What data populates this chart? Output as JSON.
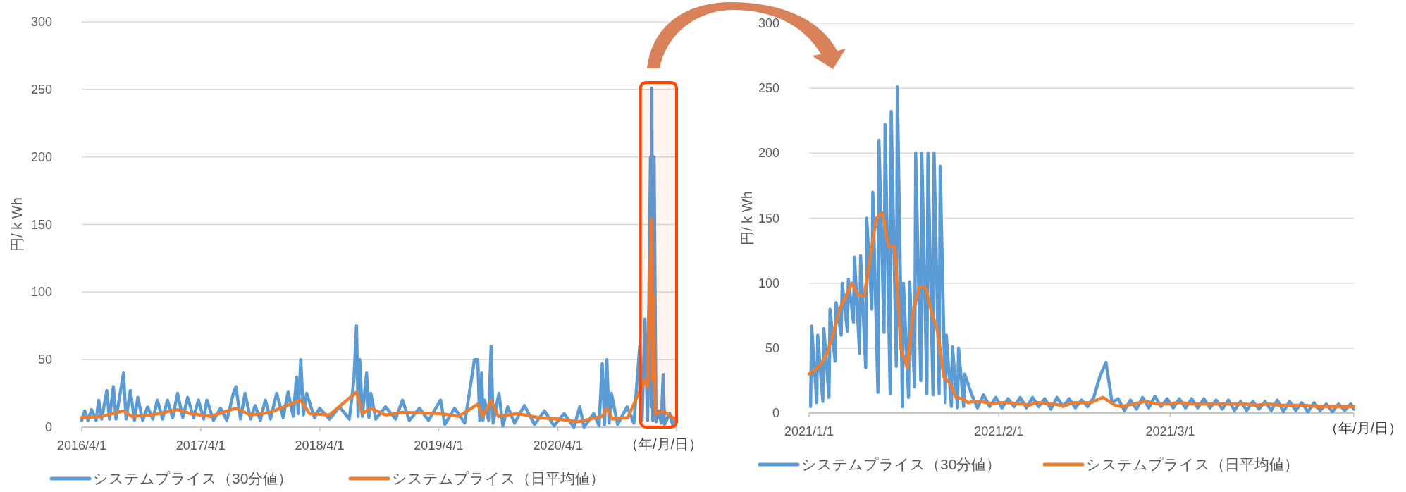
{
  "chart_data": [
    {
      "type": "line",
      "ylabel": "円/ k Wh",
      "xlabel": "（年/月/日）",
      "xlim": [
        "2016-04-01",
        "2021-03-31"
      ],
      "ylim": [
        0,
        300
      ],
      "yticks": [
        0,
        50,
        100,
        150,
        200,
        250,
        300
      ],
      "xticks": [
        {
          "value": "2016-04-01",
          "label": "2016/4/1"
        },
        {
          "value": "2017-04-01",
          "label": "2017/4/1"
        },
        {
          "value": "2018-04-01",
          "label": "2018/4/1"
        },
        {
          "value": "2019-04-01",
          "label": "2019/4/1"
        },
        {
          "value": "2020-04-01",
          "label": "2020/4/1"
        }
      ],
      "grid": "y",
      "legend": "bottom",
      "line_style": "solid",
      "marker": "none",
      "bands": [
        {
          "axis": "x",
          "from": "2020-12-10",
          "to": "2021-03-31",
          "color": "#ff4500"
        }
      ],
      "series": [
        {
          "name": "システムプライス（30分値）",
          "color": "#5b9bd5",
          "x": [
            "2016-04-01",
            "2016-04-10",
            "2016-04-20",
            "2016-05-01",
            "2016-05-15",
            "2016-05-23",
            "2016-06-01",
            "2016-06-17",
            "2016-06-25",
            "2016-07-07",
            "2016-07-15",
            "2016-08-07",
            "2016-08-15",
            "2016-08-28",
            "2016-09-10",
            "2016-09-20",
            "2016-10-05",
            "2016-10-20",
            "2016-11-05",
            "2016-11-19",
            "2016-12-05",
            "2016-12-20",
            "2017-01-05",
            "2017-01-20",
            "2017-02-05",
            "2017-02-20",
            "2017-03-10",
            "2017-03-25",
            "2017-04-10",
            "2017-04-20",
            "2017-05-10",
            "2017-06-01",
            "2017-06-20",
            "2017-07-10",
            "2017-07-18",
            "2017-08-01",
            "2017-08-15",
            "2017-09-01",
            "2017-09-15",
            "2017-10-01",
            "2017-10-16",
            "2017-11-01",
            "2017-11-20",
            "2017-12-10",
            "2017-12-25",
            "2018-01-10",
            "2018-01-20",
            "2018-01-25",
            "2018-02-02",
            "2018-02-10",
            "2018-02-20",
            "2018-03-16",
            "2018-04-01",
            "2018-05-01",
            "2018-06-01",
            "2018-07-01",
            "2018-07-15",
            "2018-07-23",
            "2018-07-28",
            "2018-08-02",
            "2018-08-10",
            "2018-08-23",
            "2018-08-30",
            "2018-09-05",
            "2018-09-20",
            "2018-10-20",
            "2018-11-20",
            "2018-12-11",
            "2019-01-01",
            "2019-02-01",
            "2019-03-01",
            "2019-04-07",
            "2019-04-20",
            "2019-05-20",
            "2019-06-20",
            "2019-07-20",
            "2019-07-30",
            "2019-08-05",
            "2019-08-11",
            "2019-08-15",
            "2019-08-20",
            "2019-09-01",
            "2019-09-09",
            "2019-09-15",
            "2019-10-03",
            "2019-10-15",
            "2019-10-30",
            "2019-11-20",
            "2019-12-20",
            "2020-01-20",
            "2020-02-20",
            "2020-03-20",
            "2020-04-20",
            "2020-05-20",
            "2020-06-07",
            "2020-06-20",
            "2020-07-20",
            "2020-08-05",
            "2020-08-15",
            "2020-08-22",
            "2020-08-29",
            "2020-09-05",
            "2020-09-12",
            "2020-10-01",
            "2020-10-30",
            "2020-11-20",
            "2020-12-08",
            "2020-12-15",
            "2020-12-24",
            "2021-01-01",
            "2021-01-10",
            "2021-01-12",
            "2021-01-14",
            "2021-01-17",
            "2021-01-21",
            "2021-01-27",
            "2021-02-05",
            "2021-02-12",
            "2021-02-18",
            "2021-02-22",
            "2021-03-10",
            "2021-03-20",
            "2021-03-31"
          ],
          "values": [
            5,
            12,
            5,
            13,
            5,
            20,
            6,
            27,
            6,
            30,
            6,
            40,
            6,
            27,
            5,
            22,
            5,
            15,
            6,
            20,
            6,
            20,
            7,
            25,
            7,
            22,
            7,
            20,
            6,
            20,
            5,
            14,
            5,
            25,
            30,
            6,
            25,
            6,
            16,
            5,
            20,
            6,
            25,
            7,
            26,
            8,
            37,
            10,
            50,
            9,
            25,
            7,
            14,
            6,
            15,
            6,
            35,
            75,
            8,
            50,
            8,
            40,
            7,
            25,
            6,
            15,
            6,
            20,
            5,
            14,
            5,
            20,
            2,
            14,
            3,
            50,
            50,
            5,
            40,
            5,
            20,
            5,
            60,
            3,
            25,
            1,
            15,
            3,
            16,
            2,
            12,
            1,
            10,
            0,
            15,
            0,
            10,
            1,
            47,
            2,
            50,
            3,
            25,
            2,
            15,
            3,
            60,
            5,
            80,
            5,
            200,
            15,
            251,
            5,
            200,
            4,
            12,
            3,
            39,
            2,
            10,
            1,
            7
          ]
        },
        {
          "name": "システムプライス（日平均値）",
          "color": "#ed7d31",
          "x": [
            "2016-04-01",
            "2016-06-01",
            "2016-08-07",
            "2016-09-01",
            "2016-11-01",
            "2017-01-20",
            "2017-03-01",
            "2017-05-01",
            "2017-07-18",
            "2017-09-01",
            "2017-11-01",
            "2018-02-02",
            "2018-03-01",
            "2018-05-01",
            "2018-07-23",
            "2018-08-10",
            "2018-09-05",
            "2018-10-20",
            "2018-12-11",
            "2019-04-07",
            "2019-06-01",
            "2019-07-30",
            "2019-08-15",
            "2019-09-09",
            "2019-10-01",
            "2019-12-01",
            "2020-02-01",
            "2020-04-01",
            "2020-06-01",
            "2020-08-15",
            "2020-08-29",
            "2020-09-15",
            "2020-11-01",
            "2020-12-24",
            "2021-01-01",
            "2021-01-07",
            "2021-01-13",
            "2021-01-16",
            "2021-01-17",
            "2021-01-19",
            "2021-01-23",
            "2021-01-26",
            "2021-02-18",
            "2021-03-31"
          ],
          "values": [
            7,
            8,
            12,
            8,
            9,
            13,
            10,
            8,
            14,
            9,
            11,
            20,
            10,
            9,
            26,
            10,
            14,
            9,
            11,
            10,
            8,
            17,
            8,
            20,
            8,
            10,
            7,
            6,
            4,
            8,
            14,
            6,
            7,
            35,
            30,
            100,
            154,
            50,
            35,
            97,
            28,
            10,
            12,
            5
          ]
        }
      ]
    },
    {
      "type": "line",
      "ylabel": "円/ k Wh",
      "xlabel": "（年/月/日）",
      "xlim": [
        "2021-01-01",
        "2021-03-31"
      ],
      "ylim": [
        0,
        300
      ],
      "yticks": [
        0,
        50,
        100,
        150,
        200,
        250,
        300
      ],
      "xticks": [
        {
          "value": "2021-01-01",
          "label": "2021/1/1"
        },
        {
          "value": "2021-02-01",
          "label": "2021/2/1"
        },
        {
          "value": "2021-03-01",
          "label": "2021/3/1"
        }
      ],
      "grid": "y",
      "legend": "bottom",
      "line_style": "solid",
      "marker": "none",
      "series": [
        {
          "name": "システムプライス（30分値）",
          "color": "#5b9bd5",
          "x": [
            "2021-01-01T06:00",
            "2021-01-01T10:00",
            "2021-01-02T06:00",
            "2021-01-02T10:00",
            "2021-01-03T06:00",
            "2021-01-03T10:00",
            "2021-01-04T06:00",
            "2021-01-04T10:00",
            "2021-01-05T06:00",
            "2021-01-05T10:00",
            "2021-01-06T06:00",
            "2021-01-06T10:00",
            "2021-01-07T06:00",
            "2021-01-07T10:00",
            "2021-01-08T06:00",
            "2021-01-08T10:00",
            "2021-01-09T06:00",
            "2021-01-09T10:00",
            "2021-01-10T06:00",
            "2021-01-10T10:00",
            "2021-01-11T06:00",
            "2021-01-11T10:00",
            "2021-01-12T06:00",
            "2021-01-12T10:00",
            "2021-01-13T06:00",
            "2021-01-13T10:00",
            "2021-01-14T06:00",
            "2021-01-14T10:00",
            "2021-01-15T06:00",
            "2021-01-15T10:00",
            "2021-01-16T06:00",
            "2021-01-16T10:00",
            "2021-01-17T06:00",
            "2021-01-17T10:00",
            "2021-01-18T06:00",
            "2021-01-18T10:00",
            "2021-01-19T06:00",
            "2021-01-19T10:00",
            "2021-01-20T06:00",
            "2021-01-20T10:00",
            "2021-01-21T06:00",
            "2021-01-21T10:00",
            "2021-01-22T06:00",
            "2021-01-22T10:00",
            "2021-01-23T06:00",
            "2021-01-23T10:00",
            "2021-01-24T06:00",
            "2021-01-24T10:00",
            "2021-01-25T06:00",
            "2021-01-25T10:00",
            "2021-01-26T06:00",
            "2021-01-26T10:00",
            "2021-01-27T12:00",
            "2021-01-28T12:00",
            "2021-01-29T12:00",
            "2021-01-30T12:00",
            "2021-01-31T12:00",
            "2021-02-01T12:00",
            "2021-02-02T12:00",
            "2021-02-03T12:00",
            "2021-02-04T12:00",
            "2021-02-05T12:00",
            "2021-02-06T12:00",
            "2021-02-07T12:00",
            "2021-02-08T12:00",
            "2021-02-09T12:00",
            "2021-02-10T12:00",
            "2021-02-11T12:00",
            "2021-02-12T12:00",
            "2021-02-13T12:00",
            "2021-02-14T12:00",
            "2021-02-15T12:00",
            "2021-02-16T12:00",
            "2021-02-17T12:00",
            "2021-02-18T12:00",
            "2021-02-19T12:00",
            "2021-02-20T12:00",
            "2021-02-21T12:00",
            "2021-02-22T12:00",
            "2021-02-23T12:00",
            "2021-02-24T12:00",
            "2021-02-25T12:00",
            "2021-02-26T12:00",
            "2021-02-27T12:00",
            "2021-02-28T12:00",
            "2021-03-01T12:00",
            "2021-03-02T12:00",
            "2021-03-03T12:00",
            "2021-03-04T12:00",
            "2021-03-05T12:00",
            "2021-03-06T12:00",
            "2021-03-07T12:00",
            "2021-03-08T12:00",
            "2021-03-09T12:00",
            "2021-03-10T12:00",
            "2021-03-11T12:00",
            "2021-03-12T12:00",
            "2021-03-13T12:00",
            "2021-03-14T12:00",
            "2021-03-15T12:00",
            "2021-03-16T12:00",
            "2021-03-17T12:00",
            "2021-03-18T12:00",
            "2021-03-19T12:00",
            "2021-03-20T12:00",
            "2021-03-21T12:00",
            "2021-03-22T12:00",
            "2021-03-23T12:00",
            "2021-03-24T12:00",
            "2021-03-25T12:00",
            "2021-03-26T12:00",
            "2021-03-27T12:00",
            "2021-03-28T12:00",
            "2021-03-29T12:00",
            "2021-03-30T12:00",
            "2021-03-31"
          ],
          "values": [
            5,
            67,
            8,
            60,
            9,
            65,
            12,
            80,
            40,
            85,
            60,
            100,
            63,
            103,
            70,
            120,
            46,
            121,
            35,
            150,
            80,
            170,
            16,
            210,
            62,
            222,
            15,
            232,
            36,
            251,
            5,
            100,
            12,
            101,
            20,
            200,
            25,
            200,
            15,
            200,
            14,
            200,
            15,
            190,
            8,
            60,
            5,
            51,
            4,
            50,
            5,
            30,
            15,
            4,
            14,
            5,
            12,
            4,
            11,
            5,
            12,
            4,
            12,
            5,
            11,
            3,
            12,
            5,
            11,
            4,
            10,
            5,
            12,
            28,
            39,
            8,
            11,
            2,
            10,
            3,
            12,
            4,
            13,
            5,
            11,
            4,
            11,
            4,
            11,
            4,
            11,
            4,
            10,
            3,
            10,
            2,
            9,
            2,
            9,
            3,
            9,
            2,
            10,
            1,
            9,
            2,
            8,
            1,
            8,
            2,
            7,
            1,
            7,
            2,
            7,
            3
          ]
        },
        {
          "name": "システムプライス（日平均値）",
          "color": "#ed7d31",
          "x": [
            "2021-01-01",
            "2021-01-02",
            "2021-01-03",
            "2021-01-04",
            "2021-01-05",
            "2021-01-06",
            "2021-01-07",
            "2021-01-08",
            "2021-01-09",
            "2021-01-10",
            "2021-01-11",
            "2021-01-12",
            "2021-01-13",
            "2021-01-14",
            "2021-01-15",
            "2021-01-16",
            "2021-01-17",
            "2021-01-18",
            "2021-01-19",
            "2021-01-20",
            "2021-01-21",
            "2021-01-22",
            "2021-01-23",
            "2021-01-24",
            "2021-01-25",
            "2021-01-26",
            "2021-01-27",
            "2021-01-28",
            "2021-01-29",
            "2021-01-30",
            "2021-01-31",
            "2021-02-01",
            "2021-02-02",
            "2021-02-03",
            "2021-02-04",
            "2021-02-05",
            "2021-02-06",
            "2021-02-07",
            "2021-02-08",
            "2021-02-09",
            "2021-02-10",
            "2021-02-11",
            "2021-02-12",
            "2021-02-13",
            "2021-02-14",
            "2021-02-15",
            "2021-02-16",
            "2021-02-17",
            "2021-02-18",
            "2021-02-19",
            "2021-02-20",
            "2021-02-21",
            "2021-02-22",
            "2021-02-23",
            "2021-02-24",
            "2021-02-25",
            "2021-02-26",
            "2021-02-27",
            "2021-02-28",
            "2021-03-01",
            "2021-03-02",
            "2021-03-03",
            "2021-03-04",
            "2021-03-05",
            "2021-03-07",
            "2021-03-09",
            "2021-03-11",
            "2021-03-13",
            "2021-03-15",
            "2021-03-17",
            "2021-03-19",
            "2021-03-21",
            "2021-03-23",
            "2021-03-25",
            "2021-03-27",
            "2021-03-29",
            "2021-03-31"
          ],
          "values": [
            30,
            33,
            38,
            47,
            62,
            80,
            90,
            100,
            91,
            90,
            120,
            150,
            154,
            128,
            128,
            50,
            35,
            78,
            97,
            97,
            78,
            63,
            28,
            23,
            12,
            11,
            8,
            9,
            9,
            8,
            7,
            8,
            8,
            8,
            7,
            7,
            6,
            8,
            8,
            7,
            7,
            6,
            6,
            8,
            8,
            8,
            8,
            10,
            12,
            9,
            6,
            5,
            6,
            7,
            8,
            9,
            8,
            7,
            7,
            7,
            8,
            8,
            7,
            7,
            7,
            7,
            7,
            7,
            6,
            7,
            6,
            6,
            6,
            5,
            5,
            5,
            5
          ]
        }
      ]
    }
  ]
}
